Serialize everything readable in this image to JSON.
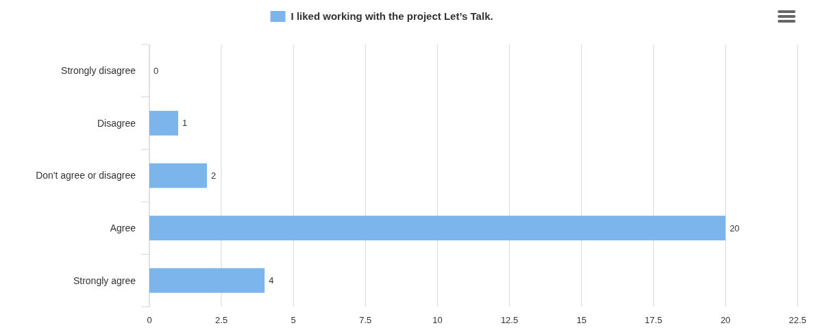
{
  "chart_data": {
    "type": "bar",
    "orientation": "horizontal",
    "categories": [
      "Strongly disagree",
      "Disagree",
      "Don't agree or disagree",
      "Agree",
      "Strongly agree"
    ],
    "series": [
      {
        "name": "I liked working with the project Let’s Talk.",
        "color": "#7cb5ec",
        "values": [
          0,
          1,
          2,
          20,
          4
        ]
      }
    ],
    "xlim": [
      0,
      22.5
    ],
    "xticks": [
      0,
      2.5,
      5,
      7.5,
      10,
      12.5,
      15,
      17.5,
      20,
      22.5
    ],
    "grid": "x",
    "legend": "top",
    "data_labels": true
  }
}
